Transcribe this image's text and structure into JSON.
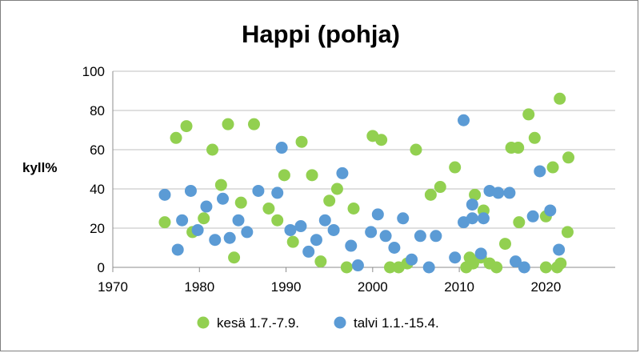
{
  "chart_data": {
    "type": "scatter",
    "title": "Happi (pohja)",
    "xlabel": "",
    "ylabel": "kyll%",
    "xlim": [
      1970,
      2028
    ],
    "ylim": [
      0,
      100
    ],
    "x_ticks": [
      "1970",
      "1980",
      "1990",
      "2000",
      "2010",
      "2020"
    ],
    "y_ticks": [
      "0",
      "20",
      "40",
      "60",
      "80",
      "100"
    ],
    "grid": "horizontal",
    "legend_position": "bottom",
    "series": [
      {
        "name": "kesä 1.7.-7.9.",
        "color": "#92d050",
        "points": [
          [
            1976,
            23
          ],
          [
            1977.3,
            66
          ],
          [
            1978.5,
            72
          ],
          [
            1979.2,
            18
          ],
          [
            1980.5,
            25
          ],
          [
            1981.5,
            60
          ],
          [
            1982.5,
            42
          ],
          [
            1983.3,
            73
          ],
          [
            1984,
            5
          ],
          [
            1984.8,
            33
          ],
          [
            1986.3,
            73
          ],
          [
            1988,
            30
          ],
          [
            1989,
            24
          ],
          [
            1989.8,
            47
          ],
          [
            1990.8,
            13
          ],
          [
            1991.8,
            64
          ],
          [
            1993,
            47
          ],
          [
            1994,
            3
          ],
          [
            1995,
            34
          ],
          [
            1995.9,
            40
          ],
          [
            1997,
            0
          ],
          [
            1997.8,
            30
          ],
          [
            2000,
            67
          ],
          [
            2001,
            65
          ],
          [
            2002,
            0
          ],
          [
            2003,
            0
          ],
          [
            2004,
            2
          ],
          [
            2005,
            60
          ],
          [
            2006.7,
            37
          ],
          [
            2007.8,
            41
          ],
          [
            2009.5,
            51
          ],
          [
            2010.8,
            0
          ],
          [
            2011.2,
            5
          ],
          [
            2011.6,
            2
          ],
          [
            2011.8,
            37
          ],
          [
            2012.5,
            5
          ],
          [
            2012.8,
            29
          ],
          [
            2013.5,
            2
          ],
          [
            2014.3,
            0
          ],
          [
            2015.3,
            12
          ],
          [
            2016,
            61
          ],
          [
            2016.8,
            61
          ],
          [
            2016.9,
            23
          ],
          [
            2018,
            78
          ],
          [
            2018.7,
            66
          ],
          [
            2020,
            0
          ],
          [
            2020,
            26
          ],
          [
            2020.8,
            51
          ],
          [
            2021.3,
            0
          ],
          [
            2021.6,
            86
          ],
          [
            2021.7,
            2
          ],
          [
            2022.5,
            18
          ],
          [
            2022.6,
            56
          ]
        ]
      },
      {
        "name": "talvi 1.1.-15.4.",
        "color": "#5b9bd5",
        "points": [
          [
            1976,
            37
          ],
          [
            1977.5,
            9
          ],
          [
            1978,
            24
          ],
          [
            1979,
            39
          ],
          [
            1979.8,
            19
          ],
          [
            1980.8,
            31
          ],
          [
            1981.8,
            14
          ],
          [
            1982.7,
            35
          ],
          [
            1983.5,
            15
          ],
          [
            1984.5,
            24
          ],
          [
            1985.5,
            18
          ],
          [
            1986.8,
            39
          ],
          [
            1989,
            38
          ],
          [
            1989.5,
            61
          ],
          [
            1990.5,
            19
          ],
          [
            1991.7,
            21
          ],
          [
            1992.6,
            8
          ],
          [
            1993.5,
            14
          ],
          [
            1994.5,
            24
          ],
          [
            1995.5,
            19
          ],
          [
            1996.5,
            48
          ],
          [
            1997.5,
            11
          ],
          [
            1998.3,
            1
          ],
          [
            1999.8,
            18
          ],
          [
            2000.6,
            27
          ],
          [
            2001.5,
            16
          ],
          [
            2002.5,
            10
          ],
          [
            2003.5,
            25
          ],
          [
            2004.5,
            4
          ],
          [
            2005.5,
            16
          ],
          [
            2006.5,
            0
          ],
          [
            2007.3,
            16
          ],
          [
            2009.5,
            5
          ],
          [
            2010.5,
            75
          ],
          [
            2010.5,
            23
          ],
          [
            2011.5,
            32
          ],
          [
            2011.5,
            25
          ],
          [
            2012.5,
            7
          ],
          [
            2012.8,
            25
          ],
          [
            2013.5,
            39
          ],
          [
            2014.5,
            38
          ],
          [
            2015.8,
            38
          ],
          [
            2016.5,
            3
          ],
          [
            2017.5,
            0
          ],
          [
            2018.5,
            26
          ],
          [
            2019.3,
            49
          ],
          [
            2020.5,
            29
          ],
          [
            2021.5,
            9
          ]
        ]
      }
    ]
  }
}
